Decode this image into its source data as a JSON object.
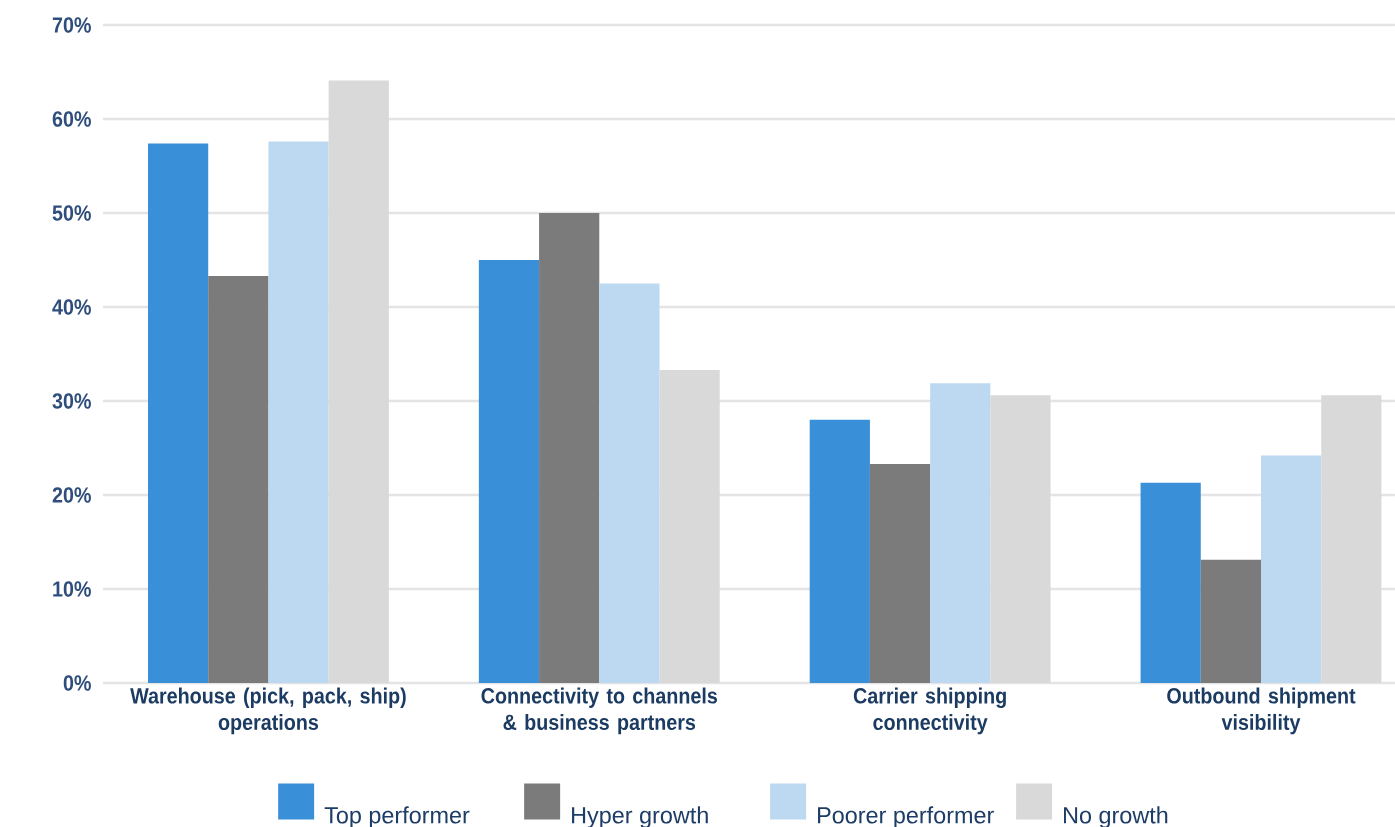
{
  "chart_data": {
    "type": "bar",
    "categories": [
      "Warehouse (pick, pack, ship)\noperations",
      "Connectivity to channels\n& business partners",
      "Carrier shipping\nconnectivity",
      "Outbound shipment\nvisibility"
    ],
    "series": [
      {
        "name": "Top performer",
        "color": "#3a8fd9",
        "values": [
          57.4,
          45.0,
          28.0,
          21.3
        ]
      },
      {
        "name": "Hyper growth",
        "color": "#7b7b7b",
        "values": [
          43.3,
          50.0,
          23.3,
          13.1
        ]
      },
      {
        "name": "Poorer performer",
        "color": "#bdd8f1",
        "values": [
          57.6,
          42.5,
          31.9,
          24.2
        ]
      },
      {
        "name": "No growth",
        "color": "#d9d9d9",
        "values": [
          64.1,
          33.3,
          30.6,
          30.6
        ]
      }
    ],
    "ylim": [
      0,
      70
    ],
    "yticks": [
      {
        "value": 0,
        "label": "0%"
      },
      {
        "value": 10,
        "label": "10%"
      },
      {
        "value": 20,
        "label": "20%"
      },
      {
        "value": 30,
        "label": "30%"
      },
      {
        "value": 40,
        "label": "40%"
      },
      {
        "value": 50,
        "label": "50%"
      },
      {
        "value": 60,
        "label": "60%"
      },
      {
        "value": 70,
        "label": "70%"
      }
    ],
    "grid": "y",
    "legend": "bottom"
  }
}
